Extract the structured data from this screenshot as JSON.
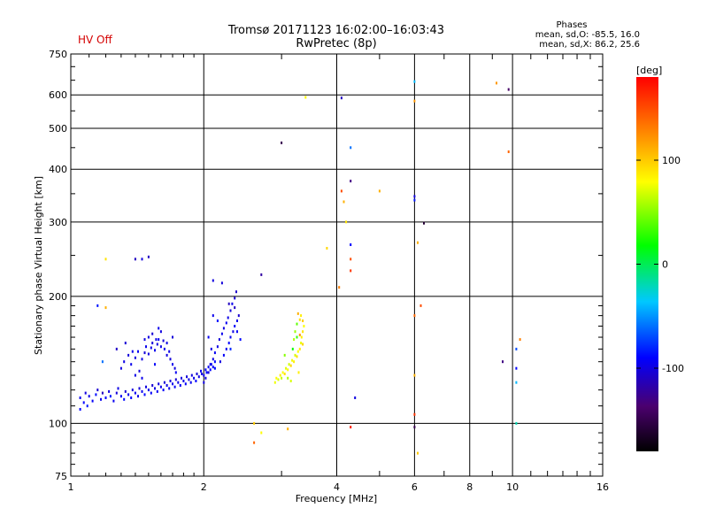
{
  "hv_status": "HV Off",
  "header": {
    "title_line1": "Tromsø 20171123 16:02:00–16:03:43",
    "title_line2": "RwPretec (8p)",
    "phases_title": "Phases",
    "phases_line1": "mean, sd,O: -85.5, 16.0",
    "phases_line2": "mean, sd,X:  86.2, 25.6"
  },
  "colorbar": {
    "unit_label": "[deg]",
    "range": [
      -180,
      180
    ],
    "tick_labels": [
      "100",
      "0",
      "-100"
    ],
    "tick_values": [
      100,
      0,
      -100
    ]
  },
  "chart_data": {
    "type": "scatter",
    "xlabel": "Frequency [MHz]",
    "ylabel": "Stationary phase Virtual Height [km]",
    "x_scale": "log",
    "y_scale": "log",
    "xlim": [
      1,
      16
    ],
    "ylim": [
      75,
      750
    ],
    "grid": true,
    "x_ticks": [
      1,
      2,
      4,
      6,
      8,
      10,
      16
    ],
    "x_tick_labels": [
      "1",
      "2",
      "4",
      "6",
      "8",
      "10",
      "16"
    ],
    "y_ticks": [
      75,
      100,
      200,
      300,
      400,
      500,
      600,
      750
    ],
    "y_tick_labels": [
      "75",
      "100",
      "200",
      "300",
      "400",
      "500",
      "600",
      "750"
    ],
    "point_columns": [
      "freq_MHz",
      "height_km",
      "phase_deg"
    ],
    "points": [
      [
        1.05,
        115,
        -95
      ],
      [
        1.07,
        112,
        -90
      ],
      [
        1.08,
        118,
        -100
      ],
      [
        1.09,
        110,
        -85
      ],
      [
        1.1,
        116,
        -98
      ],
      [
        1.12,
        113,
        -92
      ],
      [
        1.14,
        117,
        -88
      ],
      [
        1.15,
        120,
        -105
      ],
      [
        1.17,
        114,
        -95
      ],
      [
        1.18,
        118,
        -110
      ],
      [
        1.2,
        115,
        -90
      ],
      [
        1.22,
        119,
        -100
      ],
      [
        1.23,
        116,
        -85
      ],
      [
        1.25,
        113,
        -95
      ],
      [
        1.27,
        118,
        -102
      ],
      [
        1.28,
        121,
        -98
      ],
      [
        1.3,
        116,
        -92
      ],
      [
        1.32,
        114,
        -88
      ],
      [
        1.33,
        119,
        -104
      ],
      [
        1.35,
        117,
        -96
      ],
      [
        1.37,
        115,
        -90
      ],
      [
        1.38,
        120,
        -100
      ],
      [
        1.4,
        118,
        -94
      ],
      [
        1.42,
        116,
        -98
      ],
      [
        1.43,
        121,
        -102
      ],
      [
        1.45,
        119,
        -95
      ],
      [
        1.47,
        117,
        -90
      ],
      [
        1.48,
        122,
        -100
      ],
      [
        1.5,
        120,
        -96
      ],
      [
        1.52,
        118,
        -92
      ],
      [
        1.53,
        123,
        -104
      ],
      [
        1.55,
        121,
        -98
      ],
      [
        1.57,
        119,
        -94
      ],
      [
        1.58,
        124,
        -100
      ],
      [
        1.6,
        122,
        -96
      ],
      [
        1.62,
        120,
        -92
      ],
      [
        1.63,
        125,
        -102
      ],
      [
        1.65,
        123,
        -98
      ],
      [
        1.67,
        121,
        -95
      ],
      [
        1.68,
        126,
        -100
      ],
      [
        1.7,
        124,
        -96
      ],
      [
        1.72,
        122,
        -92
      ],
      [
        1.73,
        127,
        -104
      ],
      [
        1.75,
        125,
        -98
      ],
      [
        1.77,
        123,
        -94
      ],
      [
        1.78,
        128,
        -100
      ],
      [
        1.8,
        126,
        -96
      ],
      [
        1.82,
        124,
        -92
      ],
      [
        1.83,
        129,
        -102
      ],
      [
        1.85,
        127,
        -98
      ],
      [
        1.87,
        125,
        -95
      ],
      [
        1.88,
        130,
        -100
      ],
      [
        1.9,
        128,
        -96
      ],
      [
        1.92,
        126,
        -90
      ],
      [
        1.93,
        131,
        -104
      ],
      [
        1.95,
        129,
        -98
      ],
      [
        1.97,
        133,
        -94
      ],
      [
        1.98,
        131,
        -100
      ],
      [
        2.0,
        130,
        -96
      ],
      [
        2.02,
        134,
        -92
      ],
      [
        2.03,
        132,
        -88
      ],
      [
        2.05,
        136,
        -94
      ],
      [
        2.07,
        134,
        -90
      ],
      [
        2.08,
        138,
        -96
      ],
      [
        2.1,
        136,
        -92
      ],
      [
        2.12,
        140,
        -88
      ],
      [
        1.3,
        135,
        -100
      ],
      [
        1.32,
        140,
        -98
      ],
      [
        1.35,
        145,
        -102
      ],
      [
        1.37,
        138,
        -96
      ],
      [
        1.4,
        143,
        -100
      ],
      [
        1.42,
        148,
        -94
      ],
      [
        1.45,
        142,
        -98
      ],
      [
        1.47,
        147,
        -102
      ],
      [
        1.48,
        152,
        -96
      ],
      [
        1.5,
        146,
        -100
      ],
      [
        1.52,
        151,
        -98
      ],
      [
        1.53,
        155,
        -102
      ],
      [
        1.55,
        149,
        -96
      ],
      [
        1.57,
        154,
        -100
      ],
      [
        1.58,
        158,
        -94
      ],
      [
        1.6,
        152,
        -98
      ],
      [
        1.62,
        157,
        -102
      ],
      [
        1.63,
        150,
        -96
      ],
      [
        1.65,
        145,
        -100
      ],
      [
        1.67,
        148,
        -98
      ],
      [
        1.68,
        142,
        -102
      ],
      [
        1.7,
        138,
        -96
      ],
      [
        1.72,
        135,
        -100
      ],
      [
        1.73,
        132,
        -94
      ],
      [
        1.4,
        130,
        -98
      ],
      [
        1.43,
        133,
        -102
      ],
      [
        1.45,
        128,
        -96
      ],
      [
        1.5,
        160,
        -100
      ],
      [
        1.53,
        163,
        -104
      ],
      [
        1.56,
        158,
        -96
      ],
      [
        1.6,
        165,
        -100
      ],
      [
        1.27,
        150,
        -108
      ],
      [
        1.33,
        155,
        -104
      ],
      [
        1.38,
        148,
        -96
      ],
      [
        1.55,
        138,
        -92
      ],
      [
        1.65,
        155,
        -98
      ],
      [
        1.7,
        160,
        -102
      ],
      [
        1.58,
        168,
        -96
      ],
      [
        1.47,
        158,
        -100
      ],
      [
        2.0,
        125,
        -100
      ],
      [
        2.02,
        128,
        -98
      ],
      [
        2.05,
        132,
        -102
      ],
      [
        2.07,
        138,
        -96
      ],
      [
        2.1,
        142,
        -100
      ],
      [
        2.12,
        147,
        -94
      ],
      [
        2.15,
        152,
        -98
      ],
      [
        2.17,
        158,
        -102
      ],
      [
        2.2,
        163,
        -96
      ],
      [
        2.22,
        168,
        -100
      ],
      [
        2.25,
        173,
        -94
      ],
      [
        2.27,
        178,
        -98
      ],
      [
        2.3,
        185,
        -102
      ],
      [
        2.32,
        192,
        -96
      ],
      [
        2.35,
        198,
        -104
      ],
      [
        2.37,
        205,
        -108
      ],
      [
        2.22,
        145,
        -92
      ],
      [
        2.25,
        150,
        -96
      ],
      [
        2.28,
        155,
        -90
      ],
      [
        2.3,
        160,
        -94
      ],
      [
        2.33,
        165,
        -98
      ],
      [
        2.35,
        170,
        -92
      ],
      [
        2.38,
        175,
        -96
      ],
      [
        2.18,
        140,
        -100
      ],
      [
        2.12,
        135,
        -88
      ],
      [
        2.2,
        215,
        -102
      ],
      [
        2.28,
        192,
        -110
      ],
      [
        2.1,
        180,
        -96
      ],
      [
        2.15,
        175,
        -86
      ],
      [
        2.3,
        150,
        -80
      ],
      [
        2.05,
        160,
        -94
      ],
      [
        2.08,
        150,
        -98
      ],
      [
        2.4,
        180,
        -105
      ],
      [
        2.35,
        188,
        -110
      ],
      [
        2.42,
        158,
        -88
      ],
      [
        2.38,
        165,
        -92
      ],
      [
        2.9,
        125,
        75
      ],
      [
        2.92,
        128,
        80
      ],
      [
        2.95,
        127,
        70
      ],
      [
        2.98,
        130,
        85
      ],
      [
        3.0,
        128,
        65
      ],
      [
        3.02,
        132,
        78
      ],
      [
        3.05,
        131,
        90
      ],
      [
        3.07,
        135,
        72
      ],
      [
        3.1,
        134,
        82
      ],
      [
        3.12,
        138,
        68
      ],
      [
        3.15,
        137,
        95
      ],
      [
        3.17,
        141,
        76
      ],
      [
        3.2,
        140,
        86
      ],
      [
        3.22,
        145,
        70
      ],
      [
        3.25,
        144,
        92
      ],
      [
        3.27,
        148,
        80
      ],
      [
        3.3,
        150,
        88
      ],
      [
        3.32,
        155,
        74
      ],
      [
        3.35,
        154,
        96
      ],
      [
        3.33,
        160,
        84
      ],
      [
        3.35,
        165,
        90
      ],
      [
        3.37,
        170,
        78
      ],
      [
        3.35,
        175,
        100
      ],
      [
        3.32,
        180,
        86
      ],
      [
        3.3,
        176,
        92
      ],
      [
        3.27,
        182,
        110
      ],
      [
        3.25,
        172,
        40
      ],
      [
        3.22,
        165,
        55
      ],
      [
        3.2,
        158,
        60
      ],
      [
        3.25,
        160,
        30
      ],
      [
        3.3,
        162,
        120
      ],
      [
        3.18,
        150,
        20
      ],
      [
        3.05,
        145,
        50
      ],
      [
        3.1,
        128,
        60
      ],
      [
        3.28,
        132,
        85
      ],
      [
        3.15,
        126,
        70
      ],
      [
        1.2,
        245,
        90
      ],
      [
        1.4,
        245,
        -110
      ],
      [
        1.45,
        245,
        -100
      ],
      [
        1.5,
        248,
        -110
      ],
      [
        1.15,
        190,
        -85
      ],
      [
        1.2,
        188,
        110
      ],
      [
        1.18,
        140,
        -60
      ],
      [
        1.05,
        108,
        -90
      ],
      [
        2.1,
        218,
        -100
      ],
      [
        2.7,
        225,
        -120
      ],
      [
        2.6,
        100,
        100
      ],
      [
        2.6,
        90,
        140
      ],
      [
        2.7,
        95,
        80
      ],
      [
        3.0,
        462,
        -150
      ],
      [
        3.1,
        97,
        110
      ],
      [
        3.4,
        592,
        80
      ],
      [
        3.8,
        260,
        95
      ],
      [
        4.05,
        210,
        130
      ],
      [
        4.1,
        355,
        150
      ],
      [
        4.1,
        590,
        -110
      ],
      [
        4.15,
        335,
        110
      ],
      [
        4.2,
        300,
        90
      ],
      [
        4.3,
        450,
        -60
      ],
      [
        4.3,
        375,
        -130
      ],
      [
        4.3,
        265,
        -90
      ],
      [
        4.3,
        245,
        150
      ],
      [
        4.3,
        230,
        160
      ],
      [
        4.3,
        98,
        170
      ],
      [
        4.4,
        115,
        -100
      ],
      [
        5.0,
        355,
        110
      ],
      [
        6.0,
        645,
        -40
      ],
      [
        6.0,
        580,
        120
      ],
      [
        6.0,
        345,
        -100
      ],
      [
        6.0,
        338,
        -85
      ],
      [
        6.0,
        180,
        140
      ],
      [
        6.0,
        130,
        110
      ],
      [
        6.0,
        105,
        160
      ],
      [
        6.0,
        98,
        -150
      ],
      [
        6.1,
        85,
        100
      ],
      [
        6.1,
        268,
        110
      ],
      [
        6.2,
        190,
        150
      ],
      [
        6.3,
        298,
        -160
      ],
      [
        9.2,
        640,
        120
      ],
      [
        9.8,
        618,
        -140
      ],
      [
        9.8,
        440,
        140
      ],
      [
        9.5,
        140,
        -130
      ],
      [
        10.2,
        150,
        -70
      ],
      [
        10.2,
        135,
        -90
      ],
      [
        10.2,
        125,
        -40
      ],
      [
        10.2,
        100,
        -20
      ],
      [
        10.4,
        158,
        130
      ]
    ]
  }
}
